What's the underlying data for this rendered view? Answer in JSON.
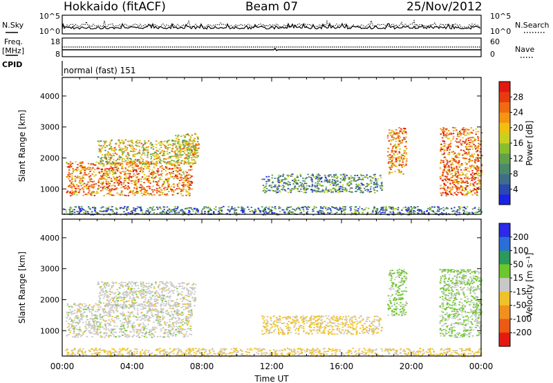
{
  "header": {
    "station": "Hokkaido (fitACF)",
    "beam": "Beam 07",
    "date": "25/Nov/2012"
  },
  "top_panels": {
    "nsky": {
      "label": "N.Sky",
      "left_ticks": [
        "10^5",
        "10^0"
      ],
      "right_label": "N.Search",
      "right_ticks": [
        "10^5",
        "10^0"
      ]
    },
    "freq": {
      "label_line1": "Freq.",
      "label_line2": "[MHz]",
      "left_ticks": [
        "18",
        "8"
      ],
      "right_label": "Nave",
      "right_ticks": [
        "60",
        "0"
      ]
    },
    "cpid": {
      "label": "CPID",
      "mode_text": "normal (fast) 151"
    }
  },
  "chart_data": [
    {
      "type": "heatmap",
      "title": "",
      "quantity": "Power",
      "xlabel": "",
      "ylabel": "Slant Range [km]",
      "xlim": [
        0,
        24
      ],
      "ylim": [
        180,
        4600
      ],
      "x_ticks": [
        0,
        4,
        8,
        12,
        16,
        20,
        24
      ],
      "y_ticks": [
        1000,
        2000,
        3000,
        4000
      ],
      "y_tick_labels": [
        "1000",
        "2000",
        "3000",
        "4000"
      ],
      "colorbar": {
        "label": "Power [dB]",
        "range": [
          0,
          32
        ],
        "ticks": [
          "4",
          "8",
          "12",
          "16",
          "20",
          "24",
          "28"
        ],
        "colors": [
          "#1a22e8",
          "#2c48b0",
          "#3e6e8c",
          "#4a8a6a",
          "#62a04a",
          "#88be2e",
          "#c8d21e",
          "#f0c010",
          "#f59510",
          "#f06a10",
          "#e83c10",
          "#e01a10"
        ]
      },
      "regions": [
        {
          "name": "dawn-sector band",
          "x": [
            0.2,
            7.4
          ],
          "range_km": [
            800,
            1900
          ],
          "power_db": 24
        },
        {
          "name": "dawn-sector upper streaks",
          "x": [
            2.0,
            7.6
          ],
          "range_km": [
            1800,
            2600
          ],
          "power_db": 18
        },
        {
          "name": "morning patch",
          "x": [
            6.4,
            7.8
          ],
          "range_km": [
            2000,
            2800
          ],
          "power_db": 20
        },
        {
          "name": "midday slanted band",
          "x": [
            11.4,
            18.3
          ],
          "range_km": [
            900,
            1500
          ],
          "power_db": 10
        },
        {
          "name": "evening patch A",
          "x": [
            18.6,
            19.7
          ],
          "range_km": [
            1500,
            3000
          ],
          "power_db": 24
        },
        {
          "name": "evening patch B",
          "x": [
            21.6,
            24.0
          ],
          "range_km": [
            800,
            3000
          ],
          "power_db": 25
        },
        {
          "name": "near-range ground scatter",
          "x": [
            0.0,
            24.0
          ],
          "range_km": [
            180,
            450
          ],
          "power_db": 8
        }
      ]
    },
    {
      "type": "heatmap",
      "title": "",
      "quantity": "Velocity",
      "xlabel": "Time UT",
      "ylabel": "Slant Range [km]",
      "xlim": [
        0,
        24
      ],
      "ylim": [
        180,
        4600
      ],
      "x_ticks": [
        0,
        4,
        8,
        12,
        16,
        20,
        24
      ],
      "x_tick_labels": [
        "00:00",
        "04:00",
        "08:00",
        "12:00",
        "16:00",
        "20:00",
        "00:00"
      ],
      "y_ticks": [
        1000,
        2000,
        3000,
        4000
      ],
      "y_tick_labels": [
        "1000",
        "2000",
        "3000",
        "4000"
      ],
      "colorbar": {
        "label": "Velocity [m s⁻¹]",
        "range": [
          -250,
          250
        ],
        "ticks": [
          "200",
          "100",
          "50",
          "15",
          "-15",
          "-50",
          "-100",
          "-200"
        ],
        "colors": [
          "#2a2ae8",
          "#2a6ed8",
          "#2a9a5a",
          "#6cc82a",
          "#c8c8c8",
          "#f0c22a",
          "#f0901e",
          "#ec5a14",
          "#e41a10"
        ]
      },
      "regions": [
        {
          "name": "dawn-sector band",
          "x": [
            0.2,
            7.4
          ],
          "range_km": [
            800,
            1900
          ],
          "velocity": 0
        },
        {
          "name": "dawn-sector upper streaks",
          "x": [
            2.0,
            7.6
          ],
          "range_km": [
            1800,
            2600
          ],
          "velocity": 0
        },
        {
          "name": "midday slanted band",
          "x": [
            11.4,
            18.3
          ],
          "range_km": [
            900,
            1500
          ],
          "velocity": -40
        },
        {
          "name": "evening patch A",
          "x": [
            18.6,
            19.7
          ],
          "range_km": [
            1500,
            3000
          ],
          "velocity": 40
        },
        {
          "name": "evening patch B",
          "x": [
            21.6,
            24.0
          ],
          "range_km": [
            800,
            3000
          ],
          "velocity": 30
        },
        {
          "name": "near-range ground scatter",
          "x": [
            0.0,
            24.0
          ],
          "range_km": [
            180,
            450
          ],
          "velocity": -40
        }
      ]
    }
  ]
}
